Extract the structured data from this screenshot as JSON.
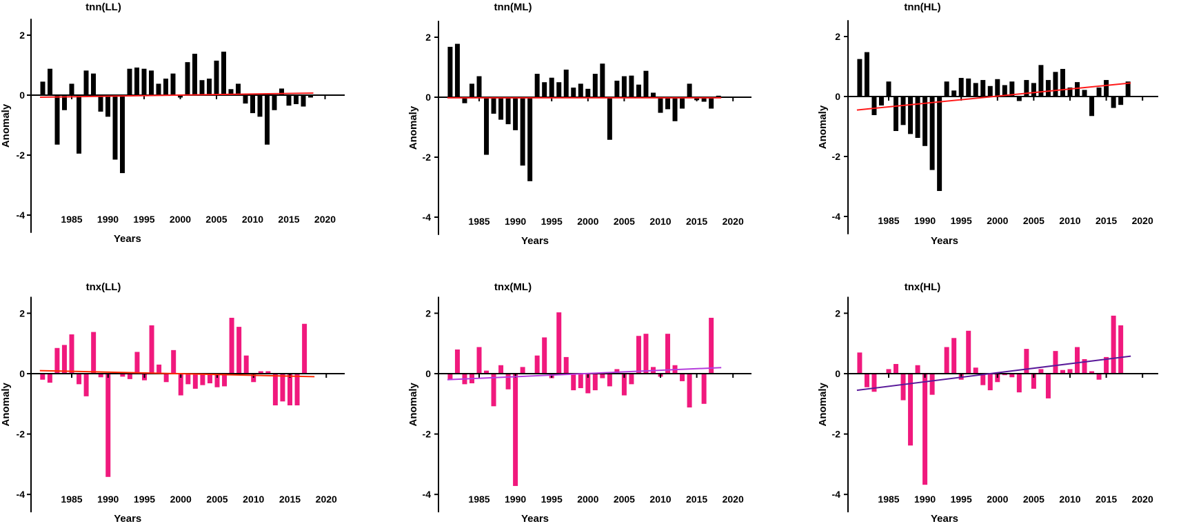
{
  "figure": {
    "colors": {
      "tnn_bar": "#000000",
      "tnx_bar": "#f0197d",
      "tnn_trend": "#ff1a1a",
      "tnx_LL_trend": "#ff2a00",
      "tnx_ML_trend": "#b43cdc",
      "tnx_HL_trend": "#5a1a9a"
    }
  },
  "chart_data": [
    {
      "type": "bar",
      "title": "tnn(LL)",
      "xlabel": "Years",
      "ylabel": "Anomaly",
      "ylim": [
        -4.5,
        2.5
      ],
      "yticks": [
        2,
        0,
        -2,
        -4
      ],
      "xticks": [
        1985,
        1990,
        1995,
        2000,
        2005,
        2010,
        2015,
        2020
      ],
      "bar_color": "#000000",
      "x": [
        1981,
        1982,
        1983,
        1984,
        1985,
        1986,
        1987,
        1988,
        1989,
        1990,
        1991,
        1992,
        1993,
        1994,
        1995,
        1996,
        1997,
        1998,
        1999,
        2000,
        2001,
        2002,
        2003,
        2004,
        2005,
        2006,
        2007,
        2008,
        2009,
        2010,
        2011,
        2012,
        2013,
        2014,
        2015,
        2016,
        2017,
        2018
      ],
      "values": [
        0.45,
        0.88,
        -1.65,
        -0.5,
        0.38,
        -1.95,
        0.82,
        0.72,
        -0.55,
        -0.72,
        -2.15,
        -2.6,
        0.88,
        0.92,
        0.88,
        0.82,
        0.38,
        0.55,
        0.72,
        -0.08,
        1.1,
        1.38,
        0.5,
        0.55,
        1.15,
        1.45,
        0.2,
        0.38,
        -0.28,
        -0.6,
        -0.72,
        -1.65,
        -0.5,
        0.22,
        -0.35,
        -0.3,
        -0.38,
        -0.08
      ],
      "trend": {
        "color": "#ff1a1a",
        "start": -0.07,
        "end": 0.07
      }
    },
    {
      "type": "bar",
      "title": "tnn(ML)",
      "xlabel": "Years",
      "ylabel": "Anomaly",
      "ylim": [
        -4.5,
        2.5
      ],
      "yticks": [
        2,
        0,
        -2,
        -4
      ],
      "xticks": [
        1985,
        1990,
        1995,
        2000,
        2005,
        2010,
        2015,
        2020
      ],
      "bar_color": "#000000",
      "x": [
        1981,
        1982,
        1983,
        1984,
        1985,
        1986,
        1987,
        1988,
        1989,
        1990,
        1991,
        1992,
        1993,
        1994,
        1995,
        1996,
        1997,
        1998,
        1999,
        2000,
        2001,
        2002,
        2003,
        2004,
        2005,
        2006,
        2007,
        2008,
        2009,
        2010,
        2011,
        2012,
        2013,
        2014,
        2015,
        2016,
        2017,
        2018
      ],
      "values": [
        1.68,
        1.78,
        -0.2,
        0.45,
        0.7,
        -1.92,
        -0.55,
        -0.75,
        -0.9,
        -1.1,
        -2.28,
        -2.8,
        0.78,
        0.5,
        0.65,
        0.5,
        0.92,
        0.32,
        0.45,
        0.28,
        0.78,
        1.12,
        -1.42,
        0.55,
        0.7,
        0.72,
        0.42,
        0.88,
        0.15,
        -0.52,
        -0.4,
        -0.8,
        -0.38,
        0.45,
        -0.1,
        -0.15,
        -0.38,
        0.05
      ],
      "trend": {
        "color": "#ff1a1a",
        "start": -0.02,
        "end": -0.02
      }
    },
    {
      "type": "bar",
      "title": "tnn(HL)",
      "xlabel": "Years",
      "ylabel": "Anomaly",
      "ylim": [
        -4.5,
        2.5
      ],
      "yticks": [
        2,
        0,
        -2,
        -4
      ],
      "xticks": [
        1985,
        1990,
        1995,
        2000,
        2005,
        2010,
        2015,
        2020
      ],
      "bar_color": "#000000",
      "x": [
        1981,
        1982,
        1983,
        1984,
        1985,
        1986,
        1987,
        1988,
        1989,
        1990,
        1991,
        1992,
        1993,
        1994,
        1995,
        1996,
        1997,
        1998,
        1999,
        2000,
        2001,
        2002,
        2003,
        2004,
        2005,
        2006,
        2007,
        2008,
        2009,
        2010,
        2011,
        2012,
        2013,
        2014,
        2015,
        2016,
        2017,
        2018
      ],
      "values": [
        1.25,
        1.48,
        -0.62,
        -0.3,
        0.5,
        -1.15,
        -0.95,
        -1.25,
        -1.38,
        -1.65,
        -2.45,
        -3.15,
        0.5,
        0.2,
        0.62,
        0.6,
        0.45,
        0.55,
        0.35,
        0.58,
        0.38,
        0.5,
        -0.15,
        0.55,
        0.45,
        1.05,
        0.55,
        0.82,
        0.92,
        0.3,
        0.48,
        0.22,
        -0.65,
        0.3,
        0.55,
        -0.38,
        -0.28,
        0.5
      ],
      "trend": {
        "color": "#ff1a1a",
        "start": -0.45,
        "end": 0.45
      }
    },
    {
      "type": "bar",
      "title": "tnx(LL)",
      "xlabel": "Years",
      "ylabel": "Anomaly",
      "ylim": [
        -4.5,
        2.5
      ],
      "yticks": [
        2,
        0,
        -2,
        -4
      ],
      "xticks": [
        1985,
        1990,
        1995,
        2000,
        2005,
        2010,
        2015,
        2020
      ],
      "bar_color": "#f0197d",
      "x": [
        1981,
        1982,
        1983,
        1984,
        1985,
        1986,
        1987,
        1988,
        1989,
        1990,
        1991,
        1992,
        1993,
        1994,
        1995,
        1996,
        1997,
        1998,
        1999,
        2000,
        2001,
        2002,
        2003,
        2004,
        2005,
        2006,
        2007,
        2008,
        2009,
        2010,
        2011,
        2012,
        2013,
        2014,
        2015,
        2016,
        2017,
        2018
      ],
      "values": [
        -0.2,
        -0.3,
        0.85,
        0.95,
        1.3,
        -0.35,
        -0.75,
        1.38,
        -0.12,
        -3.42,
        0.0,
        -0.1,
        -0.18,
        0.72,
        -0.22,
        1.6,
        0.3,
        -0.28,
        0.78,
        -0.72,
        -0.35,
        -0.5,
        -0.38,
        -0.32,
        -0.45,
        -0.42,
        1.85,
        1.55,
        0.6,
        -0.28,
        0.08,
        0.08,
        -1.05,
        -0.92,
        -1.05,
        -1.05,
        1.65,
        0.0
      ],
      "trend": {
        "color": "#ff2a00",
        "start": 0.1,
        "end": -0.1
      }
    },
    {
      "type": "bar",
      "title": "tnx(ML)",
      "xlabel": "Years",
      "ylabel": "Anomaly",
      "ylim": [
        -4.5,
        2.5
      ],
      "yticks": [
        2,
        0,
        -2,
        -4
      ],
      "xticks": [
        1985,
        1990,
        1995,
        2000,
        2005,
        2010,
        2015,
        2020
      ],
      "bar_color": "#f0197d",
      "x": [
        1981,
        1982,
        1983,
        1984,
        1985,
        1986,
        1987,
        1988,
        1989,
        1990,
        1991,
        1992,
        1993,
        1994,
        1995,
        1996,
        1997,
        1998,
        1999,
        2000,
        2001,
        2002,
        2003,
        2004,
        2005,
        2006,
        2007,
        2008,
        2009,
        2010,
        2011,
        2012,
        2013,
        2014,
        2015,
        2016,
        2017,
        2018
      ],
      "values": [
        -0.2,
        0.8,
        -0.35,
        -0.32,
        0.88,
        0.1,
        -1.08,
        0.28,
        -0.52,
        -3.72,
        0.22,
        0.0,
        0.6,
        1.2,
        -0.15,
        2.03,
        0.55,
        -0.55,
        -0.48,
        -0.65,
        -0.55,
        -0.15,
        -0.42,
        0.15,
        -0.72,
        -0.35,
        1.25,
        1.32,
        0.22,
        -0.1,
        1.32,
        0.28,
        -0.25,
        -1.12,
        0.0,
        -1.0,
        1.85,
        0.0
      ],
      "trend": {
        "color": "#b43cdc",
        "start": -0.2,
        "end": 0.2
      }
    },
    {
      "type": "bar",
      "title": "tnx(HL)",
      "xlabel": "Years",
      "ylabel": "Anomaly",
      "ylim": [
        -4.5,
        2.5
      ],
      "yticks": [
        2,
        0,
        -2,
        -4
      ],
      "xticks": [
        1985,
        1990,
        1995,
        2000,
        2005,
        2010,
        2015,
        2020
      ],
      "bar_color": "#f0197d",
      "x": [
        1981,
        1982,
        1983,
        1984,
        1985,
        1986,
        1987,
        1988,
        1989,
        1990,
        1991,
        1992,
        1993,
        1994,
        1995,
        1996,
        1997,
        1998,
        1999,
        2000,
        2001,
        2002,
        2003,
        2004,
        2005,
        2006,
        2007,
        2008,
        2009,
        2010,
        2011,
        2012,
        2013,
        2014,
        2015,
        2016,
        2017,
        2018
      ],
      "values": [
        0.7,
        -0.45,
        -0.6,
        0.0,
        0.15,
        0.32,
        -0.88,
        -2.38,
        0.28,
        -3.68,
        -0.7,
        0.0,
        0.88,
        1.18,
        -0.2,
        1.42,
        0.2,
        -0.38,
        -0.55,
        -0.28,
        -0.05,
        -0.12,
        -0.62,
        0.82,
        -0.5,
        0.15,
        -0.82,
        0.75,
        0.12,
        0.15,
        0.88,
        0.48,
        0.08,
        -0.2,
        0.55,
        1.92,
        1.6,
        0.0
      ],
      "trend": {
        "color": "#5a1a9a",
        "start": -0.55,
        "end": 0.58
      }
    }
  ]
}
